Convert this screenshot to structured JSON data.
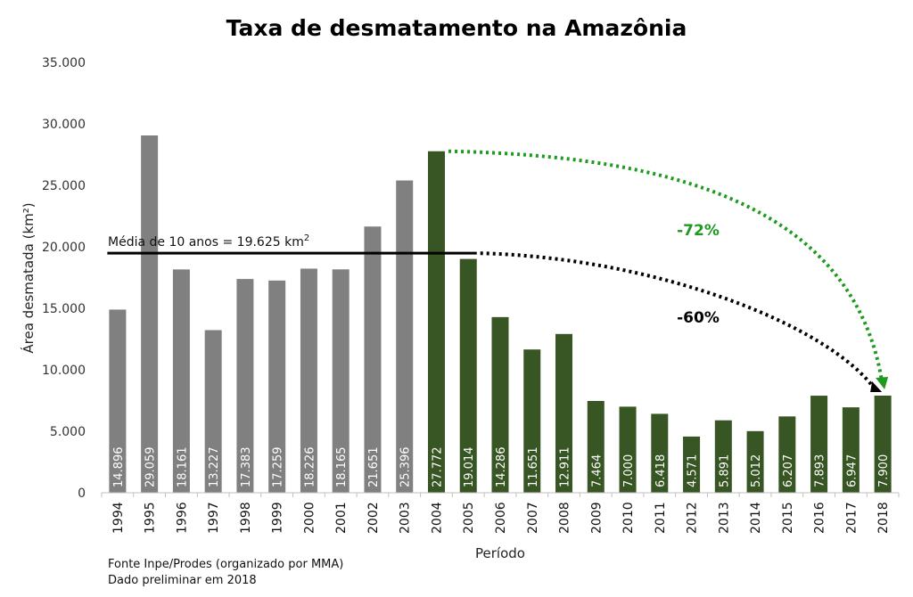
{
  "chart_data": {
    "type": "bar",
    "title": "Taxa de desmatamento na Amazônia",
    "xlabel": "Período",
    "ylabel": "Área desmatada (km²)",
    "ylim": [
      0,
      35000
    ],
    "yticks": [
      0,
      5000,
      10000,
      15000,
      20000,
      25000,
      30000,
      35000
    ],
    "ytick_labels": [
      "0",
      "5.000",
      "10.000",
      "15.000",
      "20.000",
      "25.000",
      "30.000",
      "35.000"
    ],
    "grid": false,
    "categories": [
      "1994",
      "1995",
      "1996",
      "1997",
      "1998",
      "1999",
      "2000",
      "2001",
      "2002",
      "2003",
      "2004",
      "2005",
      "2006",
      "2007",
      "2008",
      "2009",
      "2010",
      "2011",
      "2012",
      "2013",
      "2014",
      "2015",
      "2016",
      "2017",
      "2018"
    ],
    "values": [
      14896,
      29059,
      18161,
      13227,
      17383,
      17259,
      18226,
      18165,
      21651,
      25396,
      27772,
      19014,
      14286,
      11651,
      12911,
      7464,
      7000,
      6418,
      4571,
      5891,
      5012,
      6207,
      7893,
      6947,
      7900
    ],
    "data_labels": [
      "14.896",
      "29.059",
      "18.161",
      "13.227",
      "17.383",
      "17.259",
      "18.226",
      "18.165",
      "21.651",
      "25.396",
      "27.772",
      "19.014",
      "14.286",
      "11.651",
      "12.911",
      "7.464",
      "7.000",
      "6.418",
      "4.571",
      "5.891",
      "5.012",
      "6.207",
      "7.893",
      "6.947",
      "7.900"
    ],
    "colors": {
      "before_2004": "#808080",
      "from_2004": "#375623"
    },
    "mean_line": {
      "value": 19625,
      "label": "Média de 10 anos = 19.625 km",
      "label_sup": "2",
      "from": "1994",
      "to": "2005",
      "color": "#000000"
    },
    "annotations": [
      {
        "text": "-72%",
        "from": "2004",
        "to": "2018",
        "color": "#1e9a1e"
      },
      {
        "text": "-60%",
        "from": "mean_line",
        "to": "2018",
        "color": "#000000"
      }
    ],
    "notes": [
      "Fonte Inpe/Prodes (organizado por MMA)",
      "Dado preliminar em 2018"
    ]
  }
}
